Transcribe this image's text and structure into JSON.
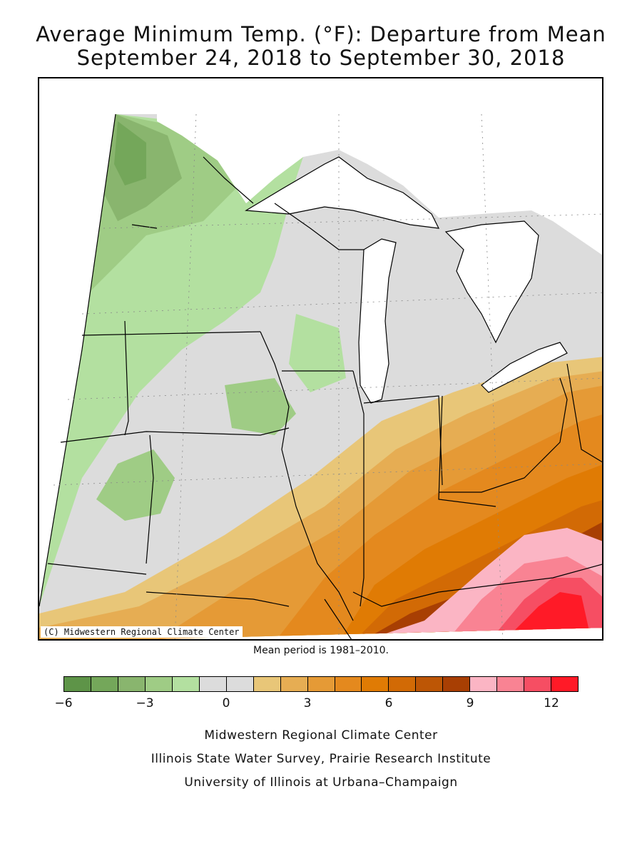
{
  "title": {
    "line1": "Average Minimum Temp. (°F): Departure from Mean",
    "line2": "September 24, 2018 to September 30, 2018"
  },
  "map": {
    "copyright": "(C) Midwestern Regional Climate Center",
    "lake_color": "#ffffff",
    "border_color": "#000000"
  },
  "mean_period_note": "Mean period is 1981–2010.",
  "legend": {
    "colors": [
      "#5e9448",
      "#74a75a",
      "#89b56e",
      "#9fcc85",
      "#b3e0a0",
      "#dcdcdc",
      "#dcdcdc",
      "#e8c678",
      "#e6ad53",
      "#e59a36",
      "#e4891e",
      "#e07b04",
      "#d26a05",
      "#bd5605",
      "#a83f03",
      "#fbb5c4",
      "#f98393",
      "#f64e63",
      "#ff1a27"
    ],
    "ticks": [
      {
        "label": "−6",
        "value": -6
      },
      {
        "label": "−3",
        "value": -3
      },
      {
        "label": "0",
        "value": 0
      },
      {
        "label": "3",
        "value": 3
      },
      {
        "label": "6",
        "value": 6
      },
      {
        "label": "9",
        "value": 9
      },
      {
        "label": "12",
        "value": 12
      }
    ],
    "min": -6,
    "max": 13
  },
  "footer": {
    "line1": "Midwestern Regional Climate Center",
    "line2": "Illinois State Water Survey, Prairie Research Institute",
    "line3": "University of Illinois at Urbana–Champaign"
  }
}
